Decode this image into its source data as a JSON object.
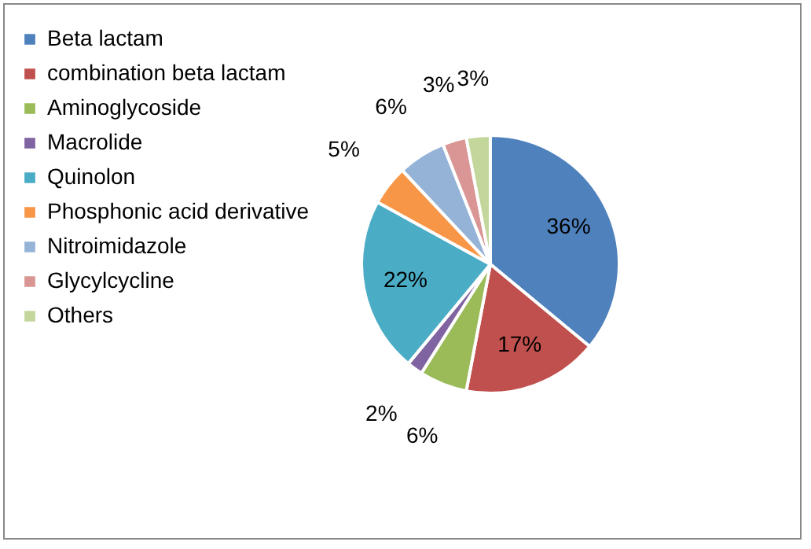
{
  "chart_data": {
    "type": "pie",
    "categories": [
      "Beta lactam",
      "combination beta lactam",
      "Aminoglycoside",
      "Macrolide",
      "Quinolon",
      "Phosphonic acid derivative",
      "Nitroimidazole",
      "Glycylcycline",
      "Others"
    ],
    "values": [
      36,
      17,
      6,
      2,
      22,
      5,
      6,
      3,
      3
    ],
    "colors": [
      "#4f81bd",
      "#c0504d",
      "#9bbb59",
      "#8064a2",
      "#4bacc6",
      "#f79646",
      "#95b3d7",
      "#d99694",
      "#c3d69b"
    ],
    "value_labels": [
      "36%",
      "17%",
      "6%",
      "2%",
      "22%",
      "5%",
      "6%",
      "3%",
      "3%"
    ],
    "legend": "left"
  }
}
